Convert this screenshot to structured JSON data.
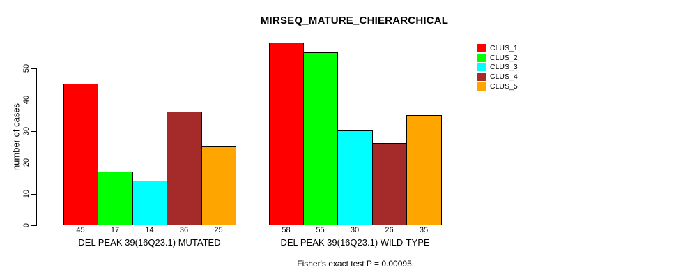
{
  "title": "MIRSEQ_MATURE_CHIERARCHICAL",
  "y_axis": {
    "label": "number of cases",
    "ticks": [
      0,
      10,
      20,
      30,
      40,
      50
    ]
  },
  "footer": "Fisher's exact test P = 0.00095",
  "legend": {
    "items": [
      {
        "label": "CLUS_1",
        "color": "#FF0000"
      },
      {
        "label": "CLUS_2",
        "color": "#00FF00"
      },
      {
        "label": "CLUS_3",
        "color": "#00FFFF"
      },
      {
        "label": "CLUS_4",
        "color": "#A52A2A"
      },
      {
        "label": "CLUS_5",
        "color": "#FFA500"
      }
    ]
  },
  "chart_data": {
    "type": "bar",
    "title": "MIRSEQ_MATURE_CHIERARCHICAL",
    "xlabel": "",
    "ylabel": "number of cases",
    "categories": [
      "DEL PEAK 39(16Q23.1) MUTATED",
      "DEL PEAK 39(16Q23.1) WILD-TYPE"
    ],
    "series": [
      {
        "name": "CLUS_1",
        "color": "#FF0000",
        "values": [
          45,
          58
        ]
      },
      {
        "name": "CLUS_2",
        "color": "#00FF00",
        "values": [
          17,
          55
        ]
      },
      {
        "name": "CLUS_3",
        "color": "#00FFFF",
        "values": [
          14,
          30
        ]
      },
      {
        "name": "CLUS_4",
        "color": "#A52A2A",
        "values": [
          36,
          26
        ]
      },
      {
        "name": "CLUS_5",
        "color": "#FFA500",
        "values": [
          25,
          35
        ]
      }
    ],
    "bar_value_labels": [
      [
        45,
        17,
        14,
        36,
        25
      ],
      [
        58,
        55,
        30,
        26,
        35
      ]
    ],
    "yticks": [
      0,
      10,
      20,
      30,
      40,
      50
    ],
    "ylim": [
      0,
      58
    ],
    "grid": false,
    "legend_position": "top-right",
    "annotation": "Fisher's exact test P = 0.00095"
  }
}
